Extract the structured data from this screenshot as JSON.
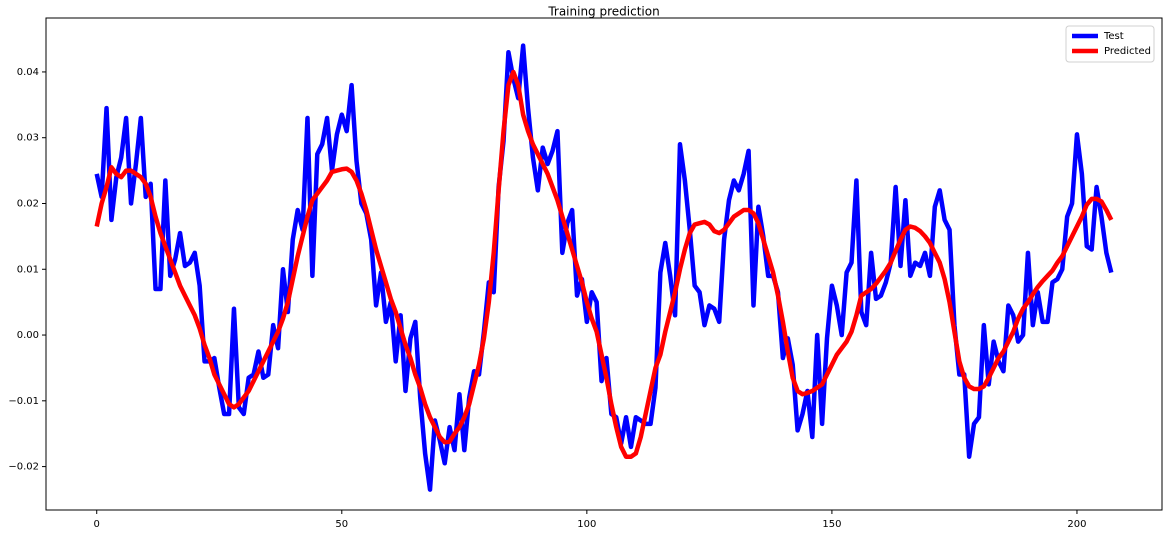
{
  "chart_data": {
    "type": "line",
    "title": "Training prediction",
    "x": [
      0,
      1,
      2,
      3,
      4,
      5,
      6,
      7,
      8,
      9,
      10,
      11,
      12,
      13,
      14,
      15,
      16,
      17,
      18,
      19,
      20,
      21,
      22,
      23,
      24,
      25,
      26,
      27,
      28,
      29,
      30,
      31,
      32,
      33,
      34,
      35,
      36,
      37,
      38,
      39,
      40,
      41,
      42,
      43,
      44,
      45,
      46,
      47,
      48,
      49,
      50,
      51,
      52,
      53,
      54,
      55,
      56,
      57,
      58,
      59,
      60,
      61,
      62,
      63,
      64,
      65,
      66,
      67,
      68,
      69,
      70,
      71,
      72,
      73,
      74,
      75,
      76,
      77,
      78,
      79,
      80,
      81,
      82,
      83,
      84,
      85,
      86,
      87,
      88,
      89,
      90,
      91,
      92,
      93,
      94,
      95,
      96,
      97,
      98,
      99,
      100,
      101,
      102,
      103,
      104,
      105,
      106,
      107,
      108,
      109,
      110,
      111,
      112,
      113,
      114,
      115,
      116,
      117,
      118,
      119,
      120,
      121,
      122,
      123,
      124,
      125,
      126,
      127,
      128,
      129,
      130,
      131,
      132,
      133,
      134,
      135,
      136,
      137,
      138,
      139,
      140,
      141,
      142,
      143,
      144,
      145,
      146,
      147,
      148,
      149,
      150,
      151,
      152,
      153,
      154,
      155,
      156,
      157,
      158,
      159,
      160,
      161,
      162,
      163,
      164,
      165,
      166,
      167,
      168,
      169,
      170,
      171,
      172,
      173,
      174,
      175,
      176,
      177,
      178,
      179,
      180,
      181,
      182,
      183,
      184,
      185,
      186,
      187,
      188,
      189,
      190,
      191,
      192,
      193,
      194,
      195,
      196,
      197,
      198,
      199,
      200,
      201,
      202,
      203,
      204,
      205,
      206,
      207
    ],
    "series": [
      {
        "name": "Test",
        "color": "#0000ff",
        "values": [
          0.0245,
          0.021,
          0.0345,
          0.0175,
          0.024,
          0.027,
          0.033,
          0.02,
          0.026,
          0.033,
          0.021,
          0.023,
          0.007,
          0.007,
          0.0235,
          0.009,
          0.0115,
          0.0155,
          0.0105,
          0.011,
          0.0125,
          0.0075,
          -0.004,
          -0.004,
          -0.0035,
          -0.008,
          -0.012,
          -0.012,
          0.004,
          -0.011,
          -0.012,
          -0.0065,
          -0.006,
          -0.0025,
          -0.0065,
          -0.006,
          0.0015,
          -0.002,
          0.01,
          0.0035,
          0.0145,
          0.019,
          0.016,
          0.033,
          0.009,
          0.0275,
          0.029,
          0.033,
          0.025,
          0.0305,
          0.0335,
          0.031,
          0.038,
          0.0265,
          0.02,
          0.0185,
          0.0145,
          0.0045,
          0.0095,
          0.002,
          0.005,
          -0.004,
          0.003,
          -0.0085,
          -0.0005,
          0.002,
          -0.0095,
          -0.018,
          -0.0235,
          -0.013,
          -0.016,
          -0.0195,
          -0.014,
          -0.0175,
          -0.009,
          -0.0175,
          -0.0095,
          -0.0055,
          -0.006,
          0.0005,
          0.008,
          0.0065,
          0.0225,
          0.0295,
          0.043,
          0.039,
          0.036,
          0.044,
          0.0345,
          0.027,
          0.022,
          0.0285,
          0.026,
          0.028,
          0.031,
          0.0125,
          0.017,
          0.019,
          0.006,
          0.0085,
          0.002,
          0.0065,
          0.005,
          -0.007,
          -0.0035,
          -0.012,
          -0.0125,
          -0.0165,
          -0.0125,
          -0.017,
          -0.0125,
          -0.013,
          -0.0135,
          -0.0135,
          -0.008,
          0.0095,
          0.014,
          0.009,
          0.003,
          0.029,
          0.0235,
          0.016,
          0.0075,
          0.0065,
          0.0015,
          0.0045,
          0.004,
          0.002,
          0.0145,
          0.0205,
          0.0235,
          0.022,
          0.0245,
          0.028,
          0.0045,
          0.0195,
          0.015,
          0.009,
          0.009,
          0.0065,
          -0.0035,
          -0.0005,
          -0.0045,
          -0.0145,
          -0.012,
          -0.0085,
          -0.0155,
          0.0,
          -0.0135,
          -0.0005,
          0.0075,
          0.0045,
          0.0,
          0.0095,
          0.011,
          0.0235,
          0.0035,
          0.0015,
          0.0125,
          0.0055,
          0.006,
          0.008,
          0.011,
          0.0225,
          0.0105,
          0.0205,
          0.009,
          0.011,
          0.0105,
          0.0125,
          0.009,
          0.0195,
          0.022,
          0.0175,
          0.016,
          0.0015,
          -0.006,
          -0.006,
          -0.0185,
          -0.0135,
          -0.0125,
          0.0015,
          -0.0075,
          -0.001,
          -0.004,
          -0.0055,
          0.0045,
          0.003,
          -0.001,
          0.0,
          0.0125,
          0.0015,
          0.0065,
          0.002,
          0.002,
          0.008,
          0.0085,
          0.01,
          0.018,
          0.02,
          0.0305,
          0.0245,
          0.0135,
          0.013,
          0.0225,
          0.018,
          0.0125,
          0.0095
        ]
      },
      {
        "name": "Predicted",
        "color": "#ff0000",
        "values": [
          0.0165,
          0.02,
          0.0225,
          0.0255,
          0.0245,
          0.024,
          0.025,
          0.025,
          0.0245,
          0.024,
          0.023,
          0.021,
          0.018,
          0.0155,
          0.0135,
          0.0115,
          0.0095,
          0.0075,
          0.006,
          0.0045,
          0.003,
          0.001,
          -0.0015,
          -0.0035,
          -0.006,
          -0.0075,
          -0.009,
          -0.0105,
          -0.011,
          -0.0105,
          -0.0095,
          -0.0085,
          -0.007,
          -0.0055,
          -0.004,
          -0.0025,
          -0.001,
          0.0005,
          0.0025,
          0.005,
          0.0085,
          0.012,
          0.015,
          0.018,
          0.0205,
          0.0215,
          0.0225,
          0.0235,
          0.0248,
          0.025,
          0.0252,
          0.0253,
          0.0248,
          0.0235,
          0.0215,
          0.019,
          0.016,
          0.013,
          0.0105,
          0.008,
          0.0055,
          0.0035,
          0.001,
          -0.0015,
          -0.0035,
          -0.006,
          -0.008,
          -0.0105,
          -0.0125,
          -0.014,
          -0.0155,
          -0.0163,
          -0.0162,
          -0.015,
          -0.014,
          -0.0125,
          -0.0105,
          -0.0075,
          -0.0045,
          -0.0005,
          0.005,
          0.0125,
          0.022,
          0.031,
          0.038,
          0.04,
          0.038,
          0.0335,
          0.031,
          0.029,
          0.0275,
          0.026,
          0.0245,
          0.0225,
          0.0205,
          0.018,
          0.0155,
          0.013,
          0.0105,
          0.008,
          0.005,
          0.0025,
          0.0005,
          -0.003,
          -0.0065,
          -0.0105,
          -0.014,
          -0.017,
          -0.0185,
          -0.0185,
          -0.018,
          -0.0155,
          -0.012,
          -0.0085,
          -0.005,
          -0.003,
          0.0005,
          0.0035,
          0.0065,
          0.01,
          0.013,
          0.0155,
          0.0168,
          0.017,
          0.0172,
          0.0168,
          0.0158,
          0.0155,
          0.016,
          0.017,
          0.018,
          0.0185,
          0.019,
          0.019,
          0.0185,
          0.017,
          0.0145,
          0.012,
          0.0095,
          0.006,
          0.002,
          -0.0025,
          -0.0065,
          -0.0085,
          -0.009,
          -0.0088,
          -0.0085,
          -0.008,
          -0.0075,
          -0.006,
          -0.0045,
          -0.003,
          -0.002,
          -0.001,
          0.0005,
          0.003,
          0.006,
          0.0065,
          0.007,
          0.0078,
          0.0088,
          0.0098,
          0.011,
          0.0128,
          0.0145,
          0.016,
          0.0165,
          0.0163,
          0.0158,
          0.015,
          0.014,
          0.0125,
          0.011,
          0.0085,
          0.005,
          0.0005,
          -0.004,
          -0.0065,
          -0.0078,
          -0.0082,
          -0.0082,
          -0.0078,
          -0.0065,
          -0.005,
          -0.0035,
          -0.0025,
          -0.001,
          0.0005,
          0.0025,
          0.004,
          0.005,
          0.0062,
          0.0073,
          0.0082,
          0.009,
          0.0098,
          0.011,
          0.012,
          0.0135,
          0.015,
          0.0165,
          0.018,
          0.0198,
          0.0207,
          0.0207,
          0.0203,
          0.019,
          0.0175
        ]
      }
    ],
    "xlim": [
      -10.35,
      217.35
    ],
    "xticks": [
      0,
      50,
      100,
      150,
      200
    ],
    "ylim": [
      -0.0266,
      0.0482
    ],
    "yticks": [
      {
        "value": -0.02,
        "label": "−0.02"
      },
      {
        "value": -0.01,
        "label": "−0.01"
      },
      {
        "value": 0,
        "label": "0.00"
      },
      0.01,
      0.02,
      0.03,
      0.04
    ],
    "legend": "upper right"
  }
}
